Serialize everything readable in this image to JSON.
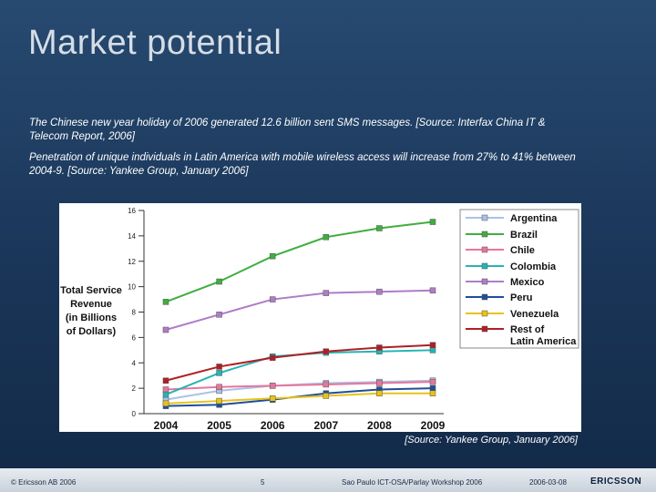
{
  "slide": {
    "title": "Market potential",
    "paragraphs": [
      "The Chinese new year holiday of 2006 generated 12.6 billion sent SMS messages. [Source: Interfax China IT & Telecom Report, 2006]",
      "Penetration of unique individuals in Latin America with mobile wireless access will increase from 27% to 41% between 2004-9. [Source: Yankee Group, January 2006]"
    ],
    "source_note": "[Source: Yankee Group, January 2006]"
  },
  "footer": {
    "copyright": "© Ericsson AB 2006",
    "page": "5",
    "event": "Sao Paulo ICT-OSA/Parlay Workshop 2006",
    "date": "2006-03-08",
    "logo": "ERICSSON"
  },
  "chart_data": {
    "type": "line",
    "title": "",
    "xlabel": "",
    "ylabel": "Total Service Revenue (in Billions of Dollars)",
    "ylabel_lines": [
      "Total Service",
      "Revenue",
      "(in Billions",
      "of Dollars)"
    ],
    "x": [
      "2004",
      "2005",
      "2006",
      "2007",
      "2008",
      "2009"
    ],
    "ylim": [
      0,
      16
    ],
    "yticks": [
      "0",
      "2",
      "4",
      "6",
      "8",
      "10",
      "12",
      "14",
      "16"
    ],
    "grid": false,
    "legend_position": "top-right",
    "series": [
      {
        "name": "Argentina",
        "label_lines": [
          "Argentina"
        ],
        "color": "#a9c3e8",
        "values": [
          1.1,
          1.8,
          2.2,
          2.4,
          2.5,
          2.6
        ]
      },
      {
        "name": "Brazil",
        "label_lines": [
          "Brazil"
        ],
        "color": "#3fae3f",
        "values": [
          8.8,
          10.4,
          12.4,
          13.9,
          14.6,
          15.1
        ]
      },
      {
        "name": "Chile",
        "label_lines": [
          "Chile"
        ],
        "color": "#e8769c",
        "values": [
          1.9,
          2.1,
          2.2,
          2.3,
          2.4,
          2.5
        ]
      },
      {
        "name": "Colombia",
        "label_lines": [
          "Colombia"
        ],
        "color": "#27b3b3",
        "values": [
          1.5,
          3.2,
          4.5,
          4.8,
          4.9,
          5.0
        ]
      },
      {
        "name": "Mexico",
        "label_lines": [
          "Mexico"
        ],
        "color": "#b07cc6",
        "values": [
          6.6,
          7.8,
          9.0,
          9.5,
          9.6,
          9.7
        ]
      },
      {
        "name": "Peru",
        "label_lines": [
          "Peru"
        ],
        "color": "#1f4e9a",
        "values": [
          0.6,
          0.7,
          1.1,
          1.6,
          1.9,
          2.0
        ]
      },
      {
        "name": "Venezuela",
        "label_lines": [
          "Venezuela"
        ],
        "color": "#e8c21a",
        "values": [
          0.8,
          1.0,
          1.2,
          1.4,
          1.6,
          1.6
        ]
      },
      {
        "name": "Rest of Latin America",
        "label_lines": [
          "Rest of",
          "Latin America"
        ],
        "color": "#b01f24",
        "values": [
          2.6,
          3.7,
          4.4,
          4.9,
          5.2,
          5.4
        ]
      }
    ]
  }
}
